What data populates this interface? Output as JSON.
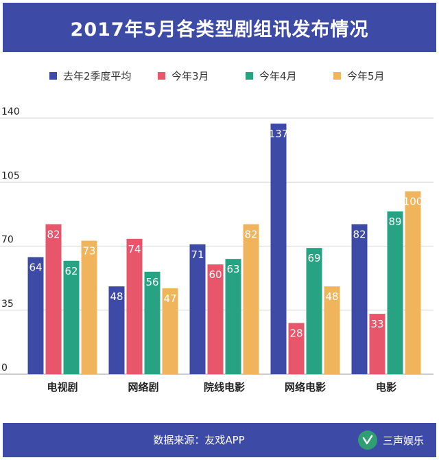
{
  "title": "2017年5月各类型剧组讯发布情况",
  "footer": {
    "source": "数据来源：友戏APP",
    "brand": "三声娱乐",
    "brand_icon": "check-logo-icon"
  },
  "chart_data": {
    "type": "bar",
    "title": "2017年5月各类型剧组讯发布情况",
    "categories": [
      "电视剧",
      "网络剧",
      "院线电影",
      "网络电影",
      "电影"
    ],
    "series": [
      {
        "name": "去年2季度平均",
        "color": "#3e4ba6",
        "values": [
          64,
          48,
          71,
          137,
          82
        ]
      },
      {
        "name": "今年3月",
        "color": "#e8566b",
        "values": [
          82,
          74,
          60,
          28,
          33
        ]
      },
      {
        "name": "今年4月",
        "color": "#27a383",
        "values": [
          62,
          56,
          63,
          69,
          89
        ]
      },
      {
        "name": "今年5月",
        "color": "#f0b55c",
        "values": [
          73,
          47,
          82,
          48,
          100
        ]
      }
    ],
    "ylim": [
      0,
      140
    ],
    "yticks": [
      0,
      35,
      70,
      105,
      140
    ],
    "xlabel": "",
    "ylabel": "",
    "grid": true,
    "legend_position": "top",
    "data_labels": true
  }
}
